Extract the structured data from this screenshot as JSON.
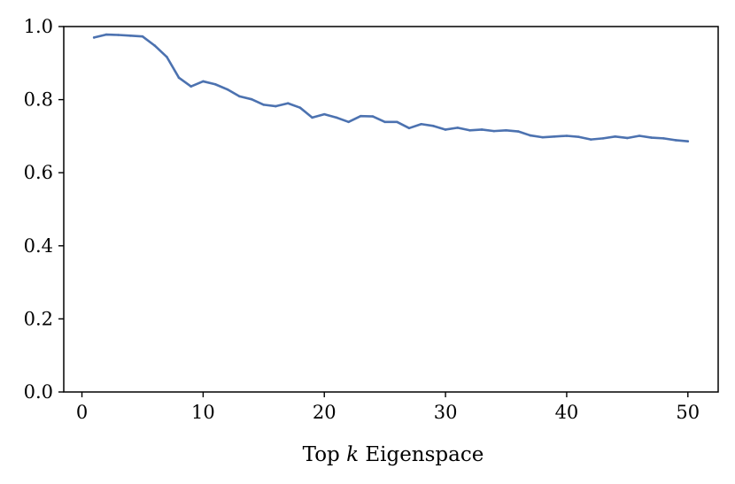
{
  "chart_data": {
    "type": "line",
    "xlabel_parts": [
      "Top ",
      "k",
      " Eigenspace"
    ],
    "ylabel": "",
    "xlim": [
      -1.5,
      52.5
    ],
    "ylim": [
      0.0,
      1.0
    ],
    "xticks": [
      0,
      10,
      20,
      30,
      40,
      50
    ],
    "xtick_labels": [
      "0",
      "10",
      "20",
      "30",
      "40",
      "50"
    ],
    "yticks": [
      0.0,
      0.2,
      0.4,
      0.6,
      0.8,
      1.0
    ],
    "ytick_labels": [
      "0.0",
      "0.2",
      "0.4",
      "0.6",
      "0.8",
      "1.0"
    ],
    "grid": false,
    "series": [
      {
        "color": "#4c72b0",
        "x": [
          1,
          2,
          3,
          4,
          5,
          6,
          7,
          8,
          9,
          10,
          11,
          12,
          13,
          14,
          15,
          16,
          17,
          18,
          19,
          20,
          21,
          22,
          23,
          24,
          25,
          26,
          27,
          28,
          29,
          30,
          31,
          32,
          33,
          34,
          35,
          36,
          37,
          38,
          39,
          40,
          41,
          42,
          43,
          44,
          45,
          46,
          47,
          48,
          49,
          50
        ],
        "y": [
          0.97,
          0.978,
          0.977,
          0.975,
          0.973,
          0.948,
          0.917,
          0.86,
          0.836,
          0.85,
          0.842,
          0.828,
          0.809,
          0.801,
          0.786,
          0.782,
          0.79,
          0.778,
          0.751,
          0.76,
          0.751,
          0.739,
          0.755,
          0.754,
          0.739,
          0.739,
          0.722,
          0.733,
          0.728,
          0.718,
          0.723,
          0.716,
          0.718,
          0.714,
          0.716,
          0.713,
          0.702,
          0.697,
          0.699,
          0.701,
          0.698,
          0.691,
          0.694,
          0.699,
          0.695,
          0.701,
          0.696,
          0.694,
          0.689,
          0.686
        ]
      }
    ]
  }
}
